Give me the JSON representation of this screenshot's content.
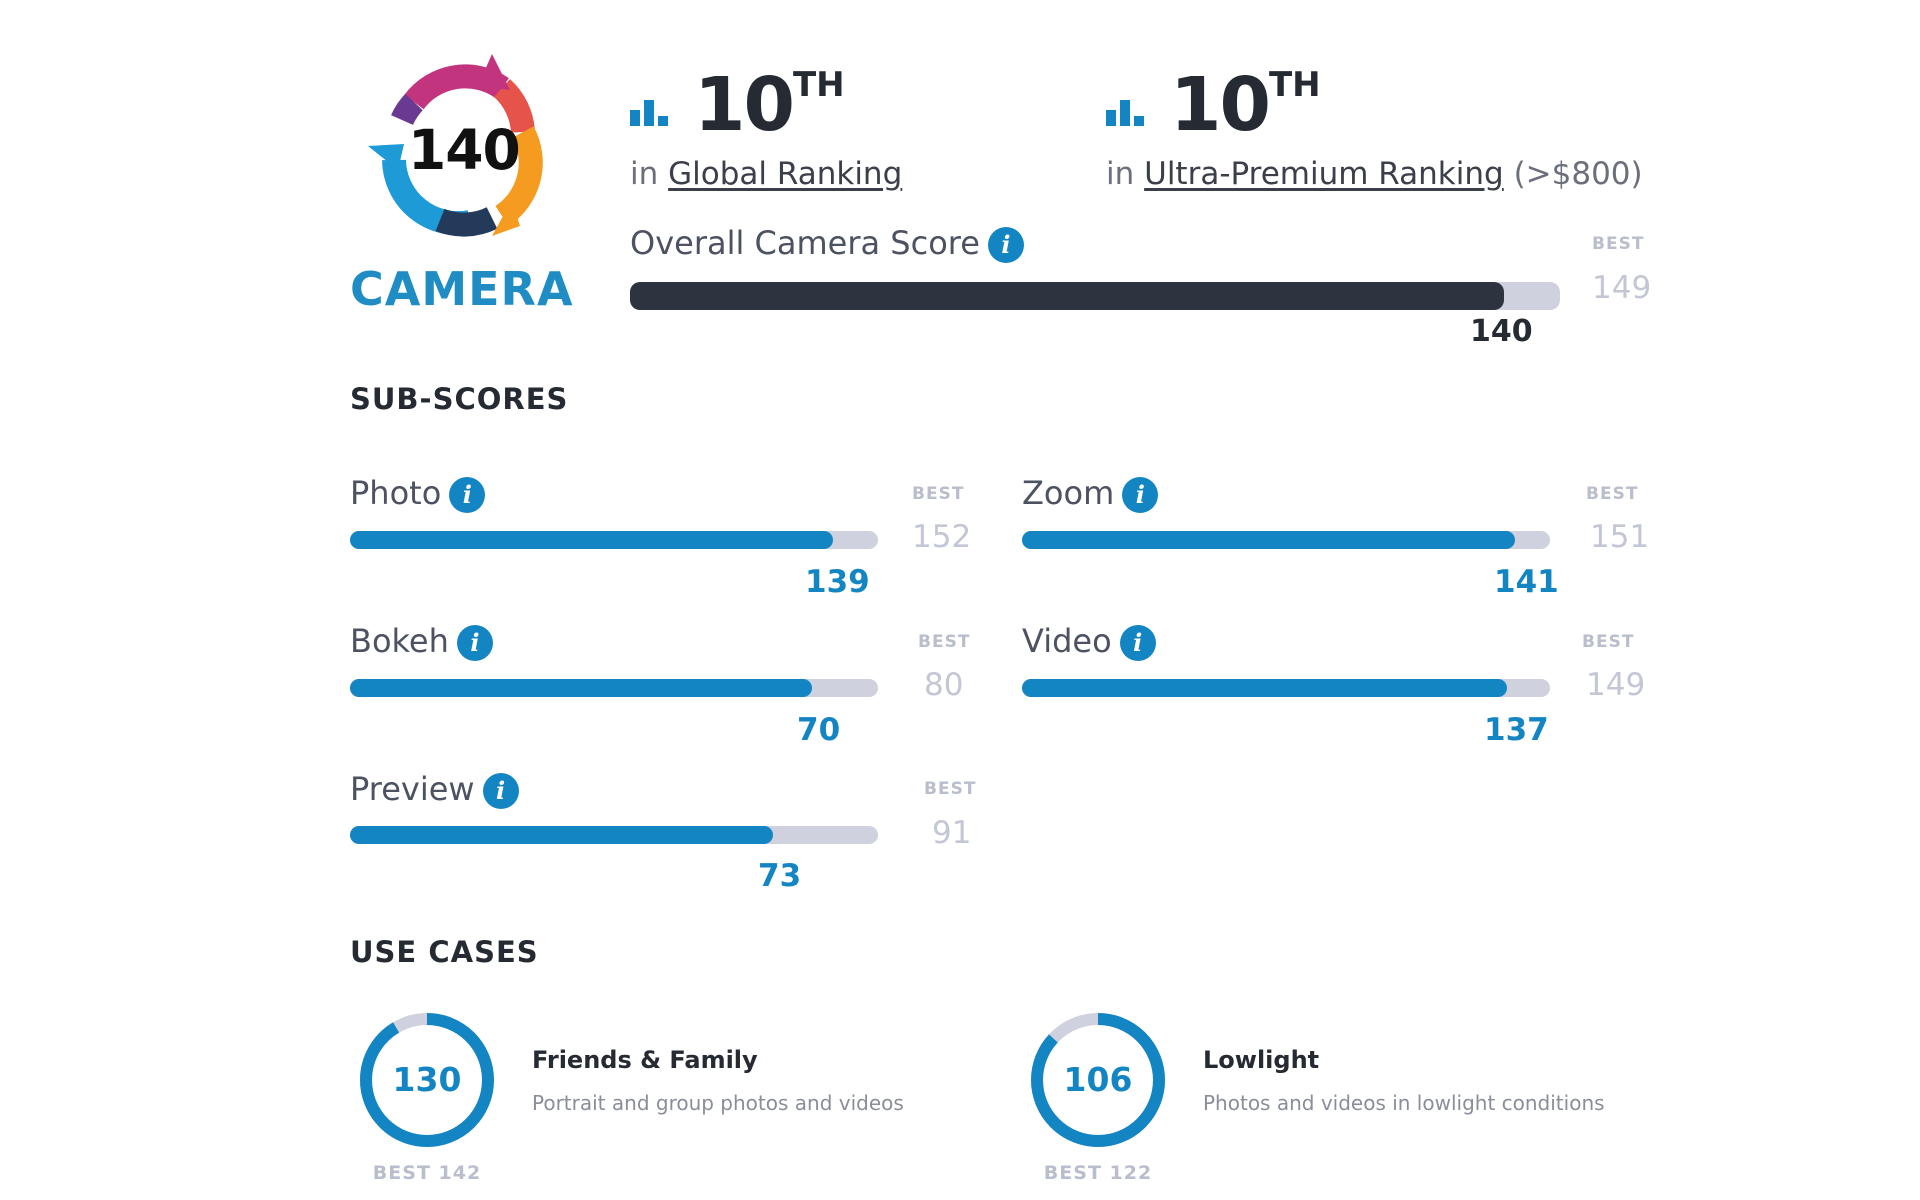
{
  "badge": {
    "score": "140",
    "label": "CAMERA"
  },
  "rankings": [
    {
      "position": "10",
      "suffix": "TH",
      "prefix": "in",
      "link": "Global Ranking",
      "note": ""
    },
    {
      "position": "10",
      "suffix": "TH",
      "prefix": "in",
      "link": "Ultra-Premium Ranking",
      "note": "(>$800)"
    }
  ],
  "overall": {
    "label": "Overall Camera Score",
    "best_label": "BEST",
    "best": "149",
    "score": "140",
    "fraction": 0.94
  },
  "subscores_title": "SUB-SCORES",
  "subscores": [
    {
      "label": "Photo",
      "best_label": "BEST",
      "best": "152",
      "score": "139",
      "fraction": 0.914
    },
    {
      "label": "Zoom",
      "best_label": "BEST",
      "best": "151",
      "score": "141",
      "fraction": 0.934
    },
    {
      "label": "Bokeh",
      "best_label": "BEST",
      "best": "80",
      "score": "70",
      "fraction": 0.875
    },
    {
      "label": "Video",
      "best_label": "BEST",
      "best": "149",
      "score": "137",
      "fraction": 0.919
    },
    {
      "label": "Preview",
      "best_label": "BEST",
      "best": "91",
      "score": "73",
      "fraction": 0.802
    }
  ],
  "usecases_title": "USE CASES",
  "usecases": [
    {
      "score": "130",
      "title": "Friends & Family",
      "description": "Portrait and group photos and videos",
      "best_text": "BEST 142",
      "fraction": 0.915
    },
    {
      "score": "106",
      "title": "Lowlight",
      "description": "Photos and videos in lowlight conditions",
      "best_text": "BEST 122",
      "fraction": 0.869
    }
  ],
  "colors": {
    "accent": "#1485c3",
    "dark_bar": "#2d3440",
    "track": "#cfd1df"
  }
}
